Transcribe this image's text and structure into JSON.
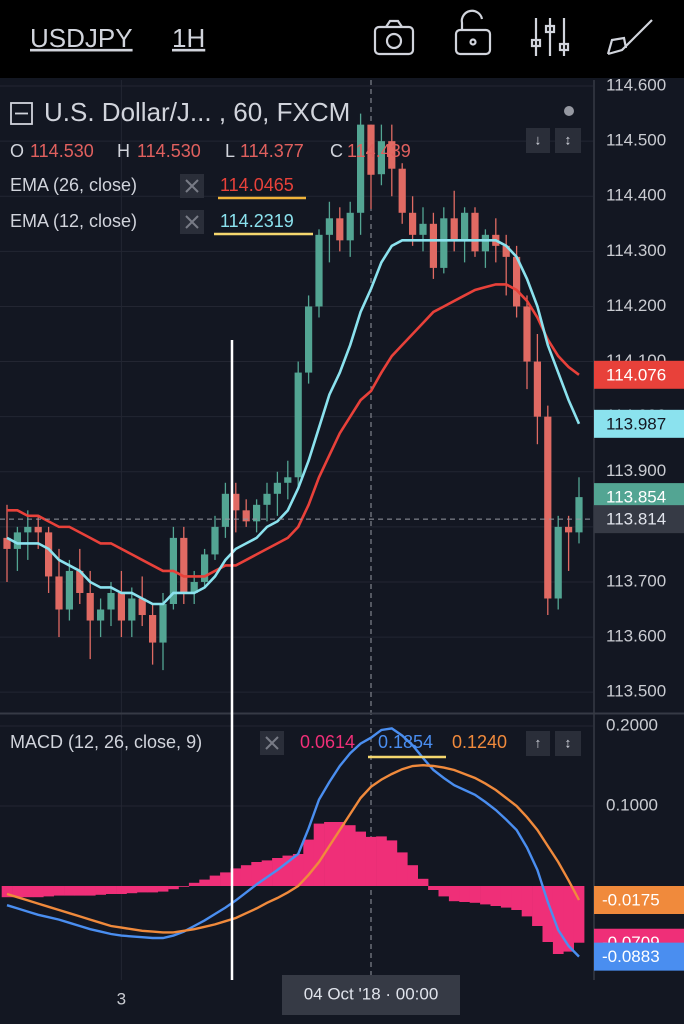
{
  "toolbar": {
    "symbol": "USDJPY",
    "interval": "1H"
  },
  "chart_data": [
    {
      "type": "candlestick",
      "title": "U.S. Dollar/J... , 60, FXCM",
      "ohlc_legend": [
        {
          "key": "O",
          "value": "114.530"
        },
        {
          "key": "H",
          "value": "114.530"
        },
        {
          "key": "L",
          "value": "114.377"
        },
        {
          "key": "C",
          "value": "114.439"
        }
      ],
      "categories": [
        null,
        null,
        null,
        null,
        null,
        null,
        null,
        null,
        null,
        null,
        null,
        "3",
        null,
        null,
        null,
        null,
        null,
        null,
        null,
        null,
        null,
        null,
        null,
        null,
        null,
        null,
        null,
        null,
        null,
        null,
        null,
        null,
        null,
        null,
        null,
        "04 Oct '18 · 00:00",
        null,
        null,
        null,
        null,
        null,
        null,
        null,
        null,
        null,
        null,
        null,
        null,
        null,
        null,
        null,
        null,
        null,
        null,
        null,
        null
      ],
      "open": [
        113.78,
        113.76,
        113.79,
        113.8,
        113.79,
        113.71,
        113.65,
        113.72,
        113.68,
        113.63,
        113.65,
        113.68,
        113.63,
        113.67,
        113.64,
        113.59,
        113.66,
        113.78,
        113.68,
        113.7,
        113.75,
        113.8,
        113.86,
        113.83,
        113.81,
        113.84,
        113.86,
        113.88,
        113.89,
        114.08,
        114.2,
        114.33,
        114.36,
        114.32,
        114.37,
        114.53,
        114.44,
        114.5,
        114.45,
        114.37,
        114.33,
        114.35,
        114.27,
        114.36,
        114.32,
        114.37,
        114.3,
        114.33,
        114.31,
        114.29,
        114.2,
        114.1,
        114.0,
        113.67,
        113.8,
        113.79
      ],
      "high": [
        113.84,
        113.8,
        113.83,
        113.82,
        113.8,
        113.76,
        113.74,
        113.76,
        113.72,
        113.67,
        113.7,
        113.72,
        113.69,
        113.71,
        113.66,
        113.68,
        113.8,
        113.8,
        113.72,
        113.76,
        113.82,
        113.88,
        113.88,
        113.85,
        113.85,
        113.88,
        113.9,
        113.92,
        114.1,
        114.22,
        114.34,
        114.39,
        114.38,
        114.39,
        114.55,
        114.53,
        114.53,
        114.53,
        114.46,
        114.4,
        114.38,
        114.37,
        114.38,
        114.41,
        114.38,
        114.38,
        114.34,
        114.36,
        114.33,
        114.31,
        114.22,
        114.15,
        114.02,
        113.82,
        113.82,
        113.89
      ],
      "low": [
        113.7,
        113.72,
        113.74,
        113.76,
        113.68,
        113.6,
        113.63,
        113.66,
        113.56,
        113.6,
        113.62,
        113.6,
        113.6,
        113.62,
        113.55,
        113.54,
        113.65,
        113.66,
        113.66,
        113.69,
        113.74,
        113.78,
        113.79,
        113.8,
        113.79,
        113.81,
        113.82,
        113.85,
        113.87,
        114.06,
        114.18,
        114.28,
        114.3,
        114.29,
        114.33,
        114.377,
        114.42,
        114.4,
        114.35,
        114.31,
        114.3,
        114.25,
        114.26,
        114.3,
        114.28,
        114.29,
        114.27,
        114.28,
        114.22,
        114.18,
        114.05,
        113.95,
        113.64,
        113.65,
        113.72,
        113.77
      ],
      "close": [
        113.76,
        113.79,
        113.8,
        113.79,
        113.71,
        113.65,
        113.72,
        113.68,
        113.63,
        113.65,
        113.68,
        113.63,
        113.67,
        113.64,
        113.59,
        113.66,
        113.78,
        113.68,
        113.7,
        113.75,
        113.8,
        113.86,
        113.83,
        113.81,
        113.84,
        113.86,
        113.88,
        113.89,
        114.08,
        114.2,
        114.33,
        114.36,
        114.32,
        114.37,
        114.53,
        114.439,
        114.5,
        114.45,
        114.37,
        114.33,
        114.35,
        114.27,
        114.36,
        114.32,
        114.37,
        114.3,
        114.33,
        114.31,
        114.29,
        114.2,
        114.1,
        114.0,
        113.67,
        113.8,
        113.79,
        113.854
      ],
      "up_color": "#53a593",
      "down_color": "#e06a63",
      "series": [
        {
          "name": "EMA (26, close)",
          "color": "#e8413a",
          "values": [
            113.83,
            113.83,
            113.82,
            113.82,
            113.81,
            113.8,
            113.8,
            113.79,
            113.78,
            113.77,
            113.77,
            113.76,
            113.75,
            113.74,
            113.73,
            113.72,
            113.72,
            113.71,
            113.71,
            113.71,
            113.72,
            113.73,
            113.73,
            113.74,
            113.75,
            113.76,
            113.77,
            113.78,
            113.8,
            113.84,
            113.89,
            113.93,
            113.97,
            114.0,
            114.03,
            114.0465,
            114.08,
            114.11,
            114.13,
            114.15,
            114.17,
            114.19,
            114.2,
            114.21,
            114.22,
            114.23,
            114.235,
            114.24,
            114.24,
            114.23,
            114.21,
            114.18,
            114.14,
            114.11,
            114.09,
            114.076
          ]
        },
        {
          "name": "EMA (12, close)",
          "color": "#8be2ee",
          "values": [
            113.78,
            113.77,
            113.77,
            113.77,
            113.76,
            113.74,
            113.73,
            113.72,
            113.7,
            113.69,
            113.69,
            113.68,
            113.68,
            113.67,
            113.66,
            113.66,
            113.68,
            113.68,
            113.68,
            113.69,
            113.71,
            113.74,
            113.76,
            113.77,
            113.78,
            113.8,
            113.81,
            113.83,
            113.87,
            113.92,
            113.98,
            114.04,
            114.08,
            114.13,
            114.19,
            114.2319,
            114.28,
            114.31,
            114.32,
            114.32,
            114.32,
            114.32,
            114.32,
            114.32,
            114.32,
            114.32,
            114.32,
            114.32,
            114.31,
            114.29,
            114.25,
            114.2,
            114.13,
            114.08,
            114.03,
            113.987
          ]
        }
      ],
      "crosshair": {
        "price": 113.814
      },
      "ylim": [
        113.464,
        114.611
      ],
      "yticks": [
        {
          "value": 113.5,
          "label": "113.500"
        },
        {
          "value": 113.6,
          "label": "113.600"
        },
        {
          "value": 113.7,
          "label": "113.700"
        },
        {
          "value": 113.8,
          "label": "113.800"
        },
        {
          "value": 113.9,
          "label": "113.900"
        },
        {
          "value": 114.0,
          "label": "114.000"
        },
        {
          "value": 114.1,
          "label": "114.100"
        },
        {
          "value": 114.2,
          "label": "114.200"
        },
        {
          "value": 114.3,
          "label": "114.300"
        },
        {
          "value": 114.4,
          "label": "114.400"
        },
        {
          "value": 114.5,
          "label": "114.500"
        },
        {
          "value": 114.6,
          "label": "114.600"
        }
      ],
      "grid": true
    },
    {
      "type": "macd",
      "title": "MACD (12, 26, close, 9)",
      "crosshair_labels": [
        "0.0614",
        "0.1854",
        "0.1240"
      ],
      "series": [
        {
          "style": "area",
          "color": "#ef2f78",
          "values": [
            -0.014,
            -0.014,
            -0.014,
            -0.014,
            -0.013,
            -0.012,
            -0.012,
            -0.012,
            -0.012,
            -0.011,
            -0.01,
            -0.01,
            -0.009,
            -0.008,
            -0.008,
            -0.007,
            -0.004,
            -0.001,
            0.004,
            0.008,
            0.013,
            0.017,
            0.022,
            0.026,
            0.03,
            0.032,
            0.035,
            0.038,
            0.04,
            0.058,
            0.078,
            0.08,
            0.08,
            0.076,
            0.068,
            0.0614,
            0.062,
            0.057,
            0.042,
            0.026,
            0.009,
            -0.005,
            -0.013,
            -0.019,
            -0.02,
            -0.021,
            -0.023,
            -0.025,
            -0.027,
            -0.03,
            -0.038,
            -0.05,
            -0.07,
            -0.085,
            -0.082,
            -0.0709
          ]
        },
        {
          "style": "line",
          "color": "#4a8ef0",
          "values": [
            -0.024,
            -0.028,
            -0.032,
            -0.036,
            -0.039,
            -0.042,
            -0.046,
            -0.05,
            -0.054,
            -0.057,
            -0.06,
            -0.062,
            -0.063,
            -0.064,
            -0.065,
            -0.065,
            -0.062,
            -0.057,
            -0.05,
            -0.043,
            -0.035,
            -0.027,
            -0.018,
            -0.008,
            0.002,
            0.011,
            0.02,
            0.03,
            0.04,
            0.072,
            0.108,
            0.13,
            0.15,
            0.166,
            0.178,
            0.1854,
            0.195,
            0.197,
            0.188,
            0.176,
            0.16,
            0.145,
            0.135,
            0.126,
            0.12,
            0.114,
            0.105,
            0.095,
            0.083,
            0.07,
            0.048,
            0.02,
            -0.02,
            -0.055,
            -0.075,
            -0.0883
          ]
        },
        {
          "style": "line",
          "color": "#f08a3c",
          "values": [
            -0.01,
            -0.014,
            -0.018,
            -0.022,
            -0.026,
            -0.03,
            -0.034,
            -0.038,
            -0.042,
            -0.046,
            -0.05,
            -0.052,
            -0.054,
            -0.056,
            -0.057,
            -0.058,
            -0.058,
            -0.056,
            -0.054,
            -0.051,
            -0.048,
            -0.044,
            -0.04,
            -0.034,
            -0.028,
            -0.021,
            -0.015,
            -0.008,
            0.0,
            0.014,
            0.03,
            0.05,
            0.07,
            0.09,
            0.11,
            0.124,
            0.133,
            0.14,
            0.146,
            0.15,
            0.151,
            0.15,
            0.148,
            0.145,
            0.14,
            0.135,
            0.128,
            0.12,
            0.11,
            0.1,
            0.086,
            0.07,
            0.05,
            0.03,
            0.007,
            -0.0175
          ]
        }
      ],
      "ylim": [
        -0.1175,
        0.215
      ],
      "yticks": [
        {
          "value": 0.1,
          "label": "0.1000"
        },
        {
          "value": 0.2,
          "label": "0.2000"
        }
      ],
      "grid": true
    }
  ]
}
